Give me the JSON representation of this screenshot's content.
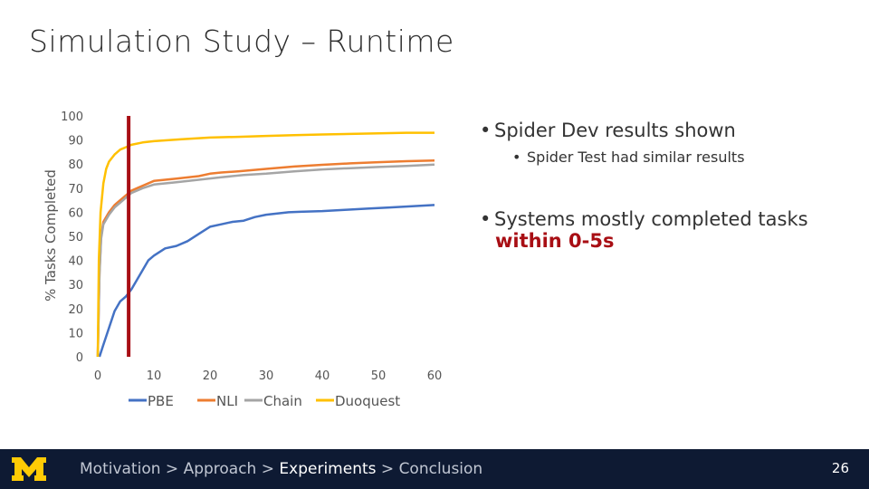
{
  "slide": {
    "title": "Simulation Study – Runtime",
    "bullets": {
      "b1": "Spider Dev results shown",
      "b2": "Spider Test had similar results",
      "b3": "Systems mostly completed tasks",
      "b4": "within 0-5s"
    },
    "footer": {
      "crumbs": [
        "Motivation",
        "Approach",
        "Experiments",
        "Conclusion"
      ],
      "separator": " > ",
      "active": "Experiments",
      "page": "26",
      "logo": "block-m-logo"
    }
  },
  "colors": {
    "PBE": "#4472c4",
    "NLI": "#ed7d31",
    "Chain": "#a5a5a5",
    "Duoquest": "#ffc000",
    "marker": "#a80e14",
    "footer_bg": "#0e1a33",
    "logo": "#ffcb05"
  },
  "chart_data": {
    "type": "line",
    "ylabel": "% Tasks Completed",
    "xlabel": "",
    "xlim": [
      0,
      60
    ],
    "ylim": [
      0,
      100
    ],
    "x_ticks": [
      0,
      10,
      20,
      30,
      40,
      50,
      60
    ],
    "y_ticks": [
      0,
      10,
      20,
      30,
      40,
      50,
      60,
      70,
      80,
      90,
      100
    ],
    "grid": false,
    "legend_position": "bottom",
    "vertical_marker_x": 5.5,
    "series": [
      {
        "name": "PBE",
        "points": [
          [
            0.3,
            0
          ],
          [
            1,
            5
          ],
          [
            2,
            12
          ],
          [
            3,
            19
          ],
          [
            4,
            23
          ],
          [
            5,
            25
          ],
          [
            6,
            28
          ],
          [
            7,
            32
          ],
          [
            8,
            36
          ],
          [
            9,
            40
          ],
          [
            10,
            42
          ],
          [
            12,
            45
          ],
          [
            14,
            46
          ],
          [
            16,
            48
          ],
          [
            18,
            51
          ],
          [
            20,
            54
          ],
          [
            22,
            55
          ],
          [
            24,
            56
          ],
          [
            26,
            56.5
          ],
          [
            28,
            58
          ],
          [
            30,
            59
          ],
          [
            32,
            59.5
          ],
          [
            34,
            60
          ],
          [
            36,
            60.2
          ],
          [
            40,
            60.5
          ],
          [
            44,
            61
          ],
          [
            48,
            61.5
          ],
          [
            52,
            62
          ],
          [
            56,
            62.5
          ],
          [
            60,
            63
          ]
        ]
      },
      {
        "name": "NLI",
        "points": [
          [
            0,
            0
          ],
          [
            0.3,
            35
          ],
          [
            0.6,
            50
          ],
          [
            1,
            56
          ],
          [
            2,
            60
          ],
          [
            3,
            63
          ],
          [
            4,
            65
          ],
          [
            5,
            67
          ],
          [
            6,
            69
          ],
          [
            7,
            70
          ],
          [
            8,
            71
          ],
          [
            10,
            73
          ],
          [
            14,
            74
          ],
          [
            18,
            75
          ],
          [
            20,
            76
          ],
          [
            22,
            76.5
          ],
          [
            25,
            77
          ],
          [
            30,
            78
          ],
          [
            35,
            79
          ],
          [
            40,
            79.7
          ],
          [
            45,
            80.3
          ],
          [
            50,
            80.8
          ],
          [
            55,
            81.2
          ],
          [
            60,
            81.5
          ]
        ]
      },
      {
        "name": "Chain",
        "points": [
          [
            0,
            0
          ],
          [
            0.3,
            34
          ],
          [
            0.6,
            49
          ],
          [
            1,
            55
          ],
          [
            2,
            59
          ],
          [
            3,
            62
          ],
          [
            4,
            64
          ],
          [
            5,
            66
          ],
          [
            6,
            68
          ],
          [
            7,
            69
          ],
          [
            8,
            70
          ],
          [
            10,
            71.5
          ],
          [
            14,
            72.5
          ],
          [
            18,
            73.5
          ],
          [
            22,
            74.5
          ],
          [
            26,
            75.5
          ],
          [
            30,
            76
          ],
          [
            35,
            77
          ],
          [
            40,
            77.8
          ],
          [
            45,
            78.3
          ],
          [
            50,
            78.8
          ],
          [
            55,
            79.2
          ],
          [
            60,
            79.8
          ]
        ]
      },
      {
        "name": "Duoquest",
        "points": [
          [
            0,
            0
          ],
          [
            0.2,
            40
          ],
          [
            0.5,
            60
          ],
          [
            1,
            72
          ],
          [
            1.5,
            78
          ],
          [
            2,
            81
          ],
          [
            3,
            84
          ],
          [
            4,
            86
          ],
          [
            5,
            87
          ],
          [
            6,
            88
          ],
          [
            8,
            89
          ],
          [
            10,
            89.5
          ],
          [
            15,
            90.3
          ],
          [
            20,
            91
          ],
          [
            25,
            91.3
          ],
          [
            30,
            91.7
          ],
          [
            35,
            92
          ],
          [
            40,
            92.3
          ],
          [
            45,
            92.5
          ],
          [
            50,
            92.8
          ],
          [
            55,
            93
          ],
          [
            60,
            93
          ]
        ]
      }
    ]
  }
}
